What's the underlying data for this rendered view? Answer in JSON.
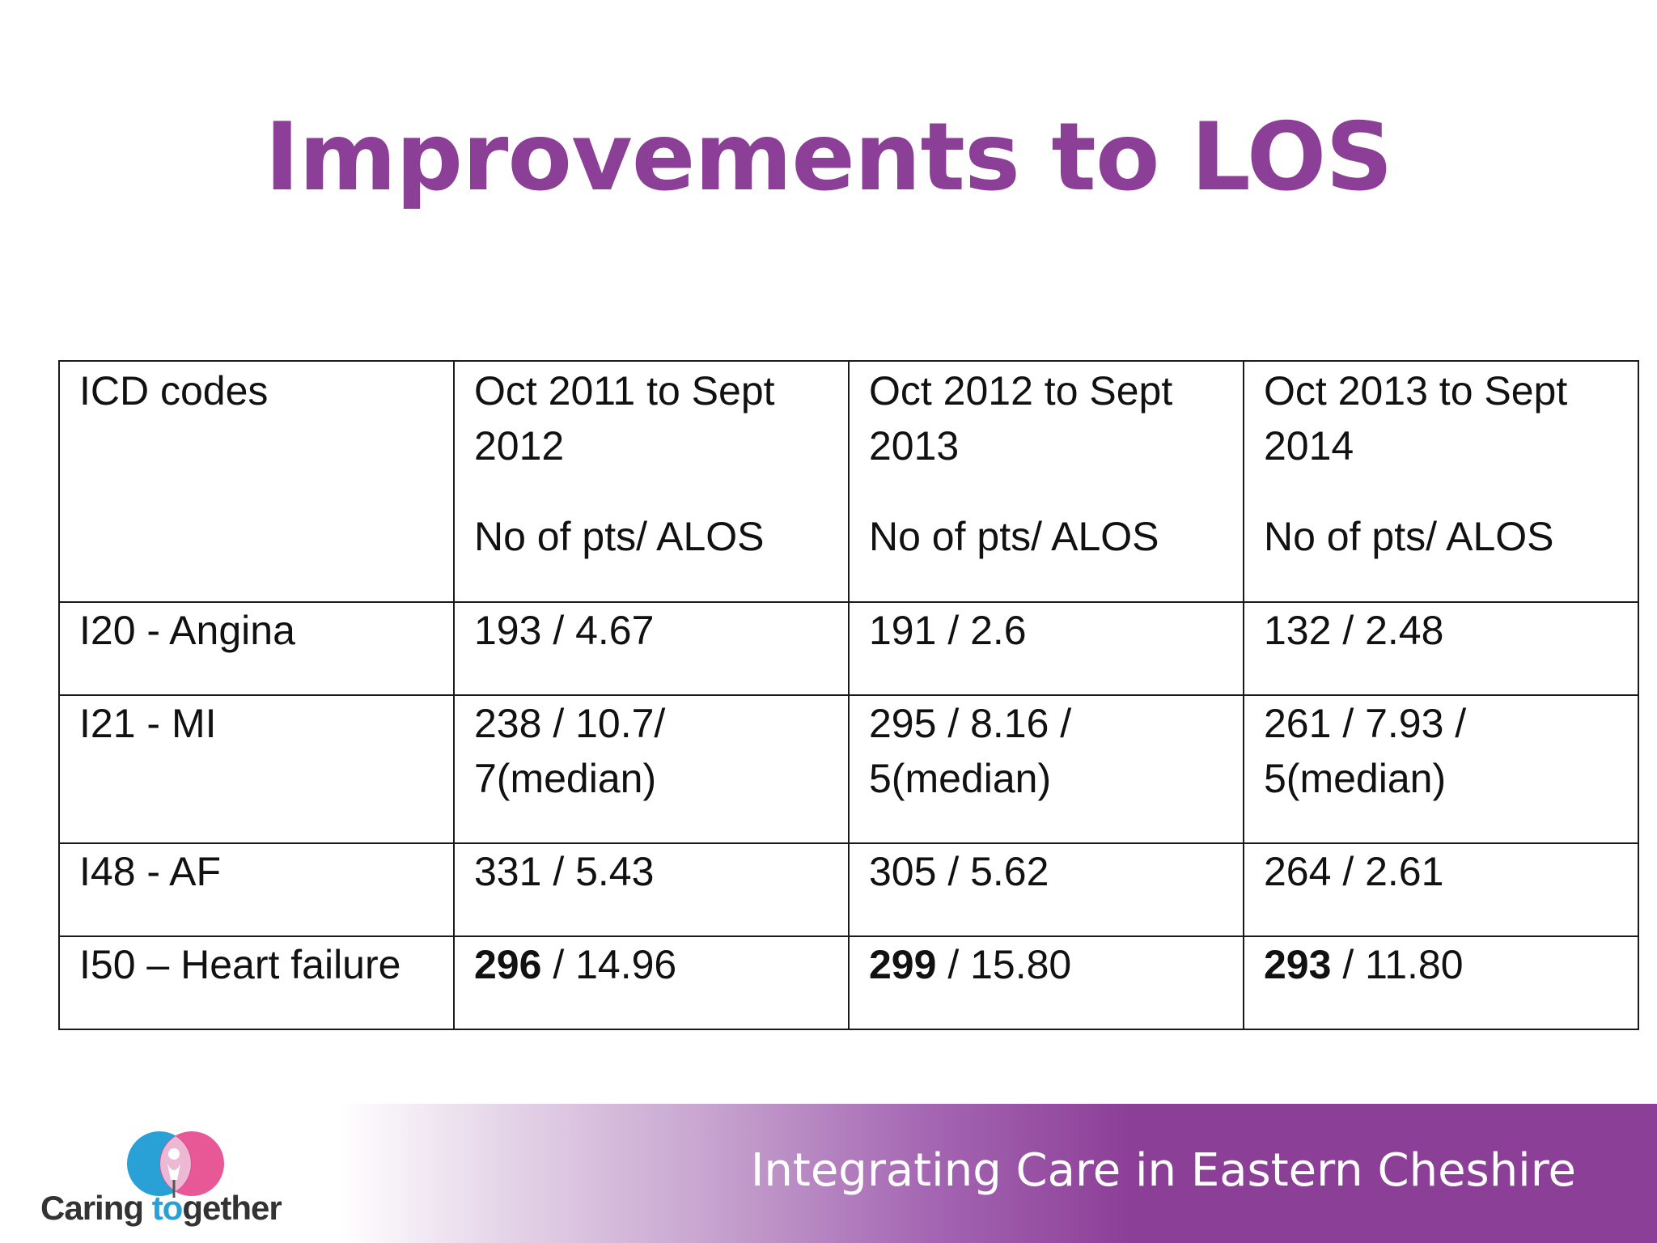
{
  "slide": {
    "title": "Improvements to LOS"
  },
  "table": {
    "header": {
      "col0": "ICD codes",
      "periods": [
        "Oct 2011 to Sept 2012",
        "Oct 2012 to Sept 2013",
        "Oct 2013 to Sept 2014"
      ],
      "sub": "No of pts/ ALOS"
    },
    "rows": [
      {
        "code": "I20 - Angina",
        "cells": [
          "193 / 4.67",
          "191 / 2.6",
          "132 / 2.48"
        ]
      },
      {
        "code": "I21 - MI",
        "cells": [
          "238 / 10.7/ 7(median)",
          "295 / 8.16 / 5(median)",
          "261 / 7.93 / 5(median)"
        ]
      },
      {
        "code": "I48 - AF",
        "cells": [
          "331 / 5.43",
          "305 / 5.62",
          "264 / 2.61"
        ]
      },
      {
        "code": "I50 – Heart failure",
        "cells_bold": [
          "296",
          "299",
          "293"
        ],
        "cells_rest": [
          " / 14.96",
          " / 15.80",
          " / 11.80"
        ]
      }
    ]
  },
  "footer": {
    "tagline": "Integrating Care in Eastern Cheshire",
    "logo_prefix": "Caring ",
    "logo_to": "to",
    "logo_suffix": "gether"
  },
  "colors": {
    "title": "#8c3f97",
    "band": "#8c3f97",
    "logo_blue": "#29a0d6",
    "logo_pink": "#e5468b"
  }
}
